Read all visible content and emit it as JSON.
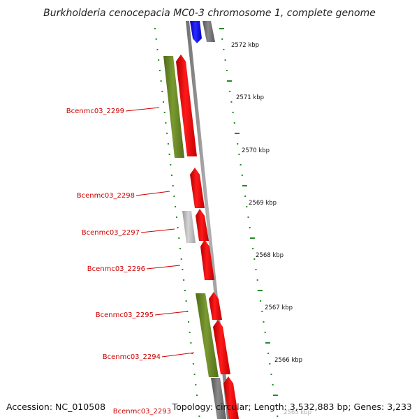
{
  "title": "Burkholderia cenocepacia MC0-3 chromosome 1, complete genome",
  "footer": {
    "accession": "Accession: NC_010508",
    "summary": "Topology: circular; Length: 3,532,883 bp; Genes: 3,233"
  },
  "colors": {
    "gene_forward": "#ff0000",
    "gene_reverse": "#ff0000",
    "cds_green": "#6b8e23",
    "pseudo_gray": "#bbbbbb",
    "blue_feature": "#0000ff",
    "label_red": "#cc0000",
    "tick_green": "#228b22"
  },
  "kbp_labels": [
    "2572 kbp",
    "2571 kbp",
    "2570 kbp",
    "2569 kbp",
    "2568 kbp",
    "2567 kbp",
    "2566 kbp",
    "2565 kbp"
  ],
  "gene_labels": [
    "Bcenmc03_2299",
    "Bcenmc03_2298",
    "Bcenmc03_2297",
    "Bcenmc03_2296",
    "Bcenmc03_2295",
    "Bcenmc03_2294",
    "Bcenmc03_2293"
  ]
}
